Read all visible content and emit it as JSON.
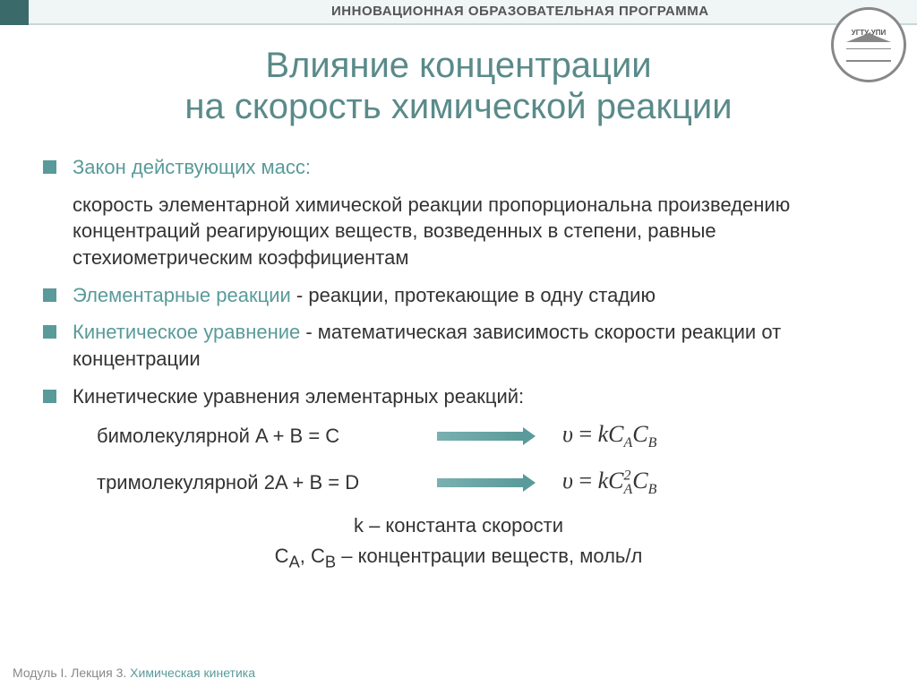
{
  "header": {
    "program_text": "ИННОВАЦИОННАЯ ОБРАЗОВАТЕЛЬНАЯ ПРОГРАММА",
    "logo_text": "УГТУ-УПИ"
  },
  "title": {
    "line1": "Влияние концентрации",
    "line2": "на скорость химической реакции"
  },
  "bullets": [
    {
      "label": "Закон действующих масс:",
      "body": "скорость элементарной химической реакции пропорциональна произведению концентраций реагирующих веществ, возведенных в степени, равные стехиометрическим коэффициентам"
    },
    {
      "label": "Элементарные реакции",
      "body": " - реакции, протекающие в одну стадию"
    },
    {
      "label": "Кинетическое уравнение",
      "body": " - математическая зависимость скорости реакции от концентрации"
    },
    {
      "label": "",
      "body": "Кинетические уравнения элементарных реакций:"
    }
  ],
  "equations": {
    "row1_label": "бимолекулярной A + B = C",
    "row1_formula": "υ = kC_A C_B",
    "row2_label": "тримолекулярной 2A + B = D",
    "row2_formula": "υ = kC_A^2 C_B"
  },
  "notes": {
    "k": "k – константа скорости",
    "c": "C_A, C_B – концентрации веществ, моль/л"
  },
  "footer": {
    "module": "Модуль I. Лекция 3. ",
    "topic": "Химическая кинетика"
  },
  "colors": {
    "teal": "#5a9a9a",
    "teal_dark": "#5a8a8a",
    "text": "#333333",
    "header_text": "#555555",
    "bg": "#ffffff"
  },
  "fonts": {
    "body_size": 22,
    "title_size": 40,
    "formula_size": 26,
    "header_size": 15,
    "footer_size": 14
  }
}
